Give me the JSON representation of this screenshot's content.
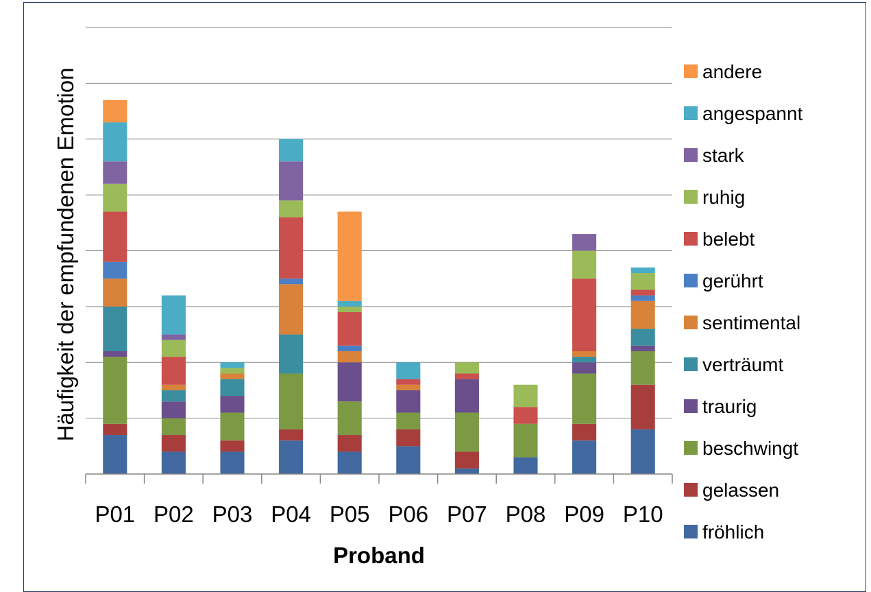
{
  "chart_data": {
    "type": "bar",
    "stacked": true,
    "title": "",
    "xlabel": "Proband",
    "ylabel": "Häufigkeit der empfundenen Emotion",
    "categories": [
      "P01",
      "P02",
      "P03",
      "P04",
      "P05",
      "P06",
      "P07",
      "P08",
      "P09",
      "P10"
    ],
    "ylim": [
      0,
      8
    ],
    "y_ticks_labeled": false,
    "grid": true,
    "legend_position": "right",
    "series": [
      {
        "name": "fröhlich",
        "color": "#4169a0",
        "values": [
          0.7,
          0.4,
          0.4,
          0.6,
          0.4,
          0.5,
          0.1,
          0.3,
          0.6,
          0.8
        ]
      },
      {
        "name": "gelassen",
        "color": "#a83e3c",
        "values": [
          0.2,
          0.3,
          0.2,
          0.2,
          0.3,
          0.3,
          0.3,
          0.0,
          0.3,
          0.8
        ]
      },
      {
        "name": "beschwingt",
        "color": "#7c9a44",
        "values": [
          1.2,
          0.3,
          0.5,
          1.0,
          0.6,
          0.3,
          0.7,
          0.6,
          0.9,
          0.6
        ]
      },
      {
        "name": "traurig",
        "color": "#6a4f8c",
        "values": [
          0.1,
          0.3,
          0.3,
          0.0,
          0.7,
          0.4,
          0.6,
          0.0,
          0.2,
          0.1
        ]
      },
      {
        "name": "verträumt",
        "color": "#3a8ea0",
        "values": [
          0.8,
          0.2,
          0.3,
          0.7,
          0.0,
          0.0,
          0.0,
          0.0,
          0.1,
          0.3
        ]
      },
      {
        "name": "sentimental",
        "color": "#d9823a",
        "values": [
          0.5,
          0.1,
          0.1,
          0.9,
          0.2,
          0.1,
          0.0,
          0.0,
          0.1,
          0.5
        ]
      },
      {
        "name": "gerührt",
        "color": "#4b7fc4",
        "values": [
          0.3,
          0.0,
          0.0,
          0.1,
          0.1,
          0.0,
          0.0,
          0.0,
          0.0,
          0.1
        ]
      },
      {
        "name": "belebt",
        "color": "#c9504c",
        "values": [
          0.9,
          0.5,
          0.0,
          1.1,
          0.6,
          0.1,
          0.1,
          0.3,
          1.3,
          0.1
        ]
      },
      {
        "name": "ruhig",
        "color": "#9bbb59",
        "values": [
          0.5,
          0.3,
          0.1,
          0.3,
          0.1,
          0.0,
          0.2,
          0.4,
          0.5,
          0.3
        ]
      },
      {
        "name": "stark",
        "color": "#8064a2",
        "values": [
          0.4,
          0.1,
          0.0,
          0.7,
          0.0,
          0.0,
          0.0,
          0.0,
          0.3,
          0.0
        ]
      },
      {
        "name": "angespannt",
        "color": "#4bacc6",
        "values": [
          0.7,
          0.7,
          0.1,
          0.4,
          0.1,
          0.3,
          0.0,
          0.0,
          0.0,
          0.1
        ]
      },
      {
        "name": "andere",
        "color": "#f79646",
        "values": [
          0.4,
          0.0,
          0.0,
          0.0,
          1.6,
          0.0,
          0.0,
          0.0,
          0.0,
          0.0
        ]
      }
    ]
  }
}
